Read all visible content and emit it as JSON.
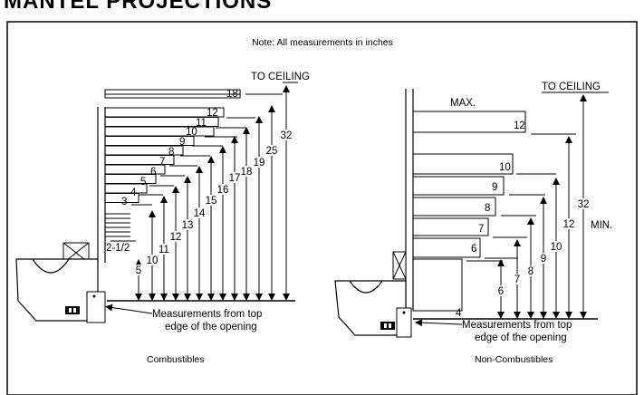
{
  "title": "MANTEL PROJECTIONS",
  "note": "Note: All measurements in inches",
  "combustibles": {
    "caption": "Combustibles",
    "to_ceiling": "TO CEILING",
    "step_labels": [
      "18",
      "12",
      "11",
      "10",
      "9",
      "8",
      "7",
      "6",
      "5",
      "4",
      "3",
      "2-1/2"
    ],
    "height_labels": [
      "5",
      "10",
      "11",
      "12",
      "13",
      "14",
      "15",
      "16",
      "17",
      "18",
      "19",
      "25",
      "32"
    ],
    "measure_note_line1": "Measurements from top",
    "measure_note_line2": "edge of the opening"
  },
  "non_combustibles": {
    "caption": "Non-Combustibles",
    "to_ceiling": "TO CEILING",
    "max_label": "MAX.",
    "min_label": "MIN.",
    "step_labels": [
      "12",
      "10",
      "9",
      "8",
      "7",
      "6",
      "4"
    ],
    "height_labels": [
      "6",
      "7",
      "8",
      "9",
      "10",
      "12",
      "32"
    ],
    "measure_note_line1": "Measurements from top",
    "measure_note_line2": "edge of the opening"
  }
}
